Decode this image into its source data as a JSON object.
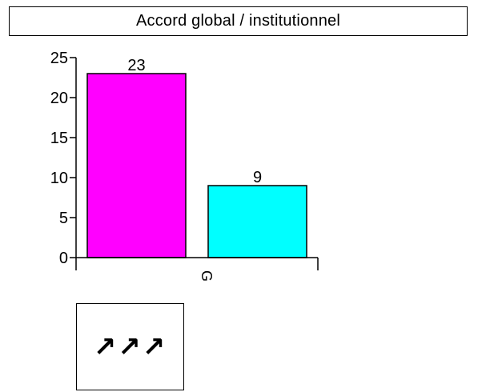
{
  "chart_data": {
    "type": "bar",
    "title": "Accord global / institutionnel",
    "categories": [
      "G"
    ],
    "series": [
      {
        "values": [
          23
        ],
        "color": "#ff00ff"
      },
      {
        "values": [
          9
        ],
        "color": "#00ffff"
      }
    ],
    "data_labels": [
      "23",
      "9"
    ],
    "yticks": [
      0,
      5,
      10,
      15,
      20,
      25
    ],
    "ylim": [
      0,
      25
    ],
    "xlabel": "",
    "ylabel": "",
    "grid": false,
    "legend": "none"
  },
  "trend_box": {
    "symbol": "↗↗↗",
    "icon": "three-up-right-arrows-icon"
  }
}
